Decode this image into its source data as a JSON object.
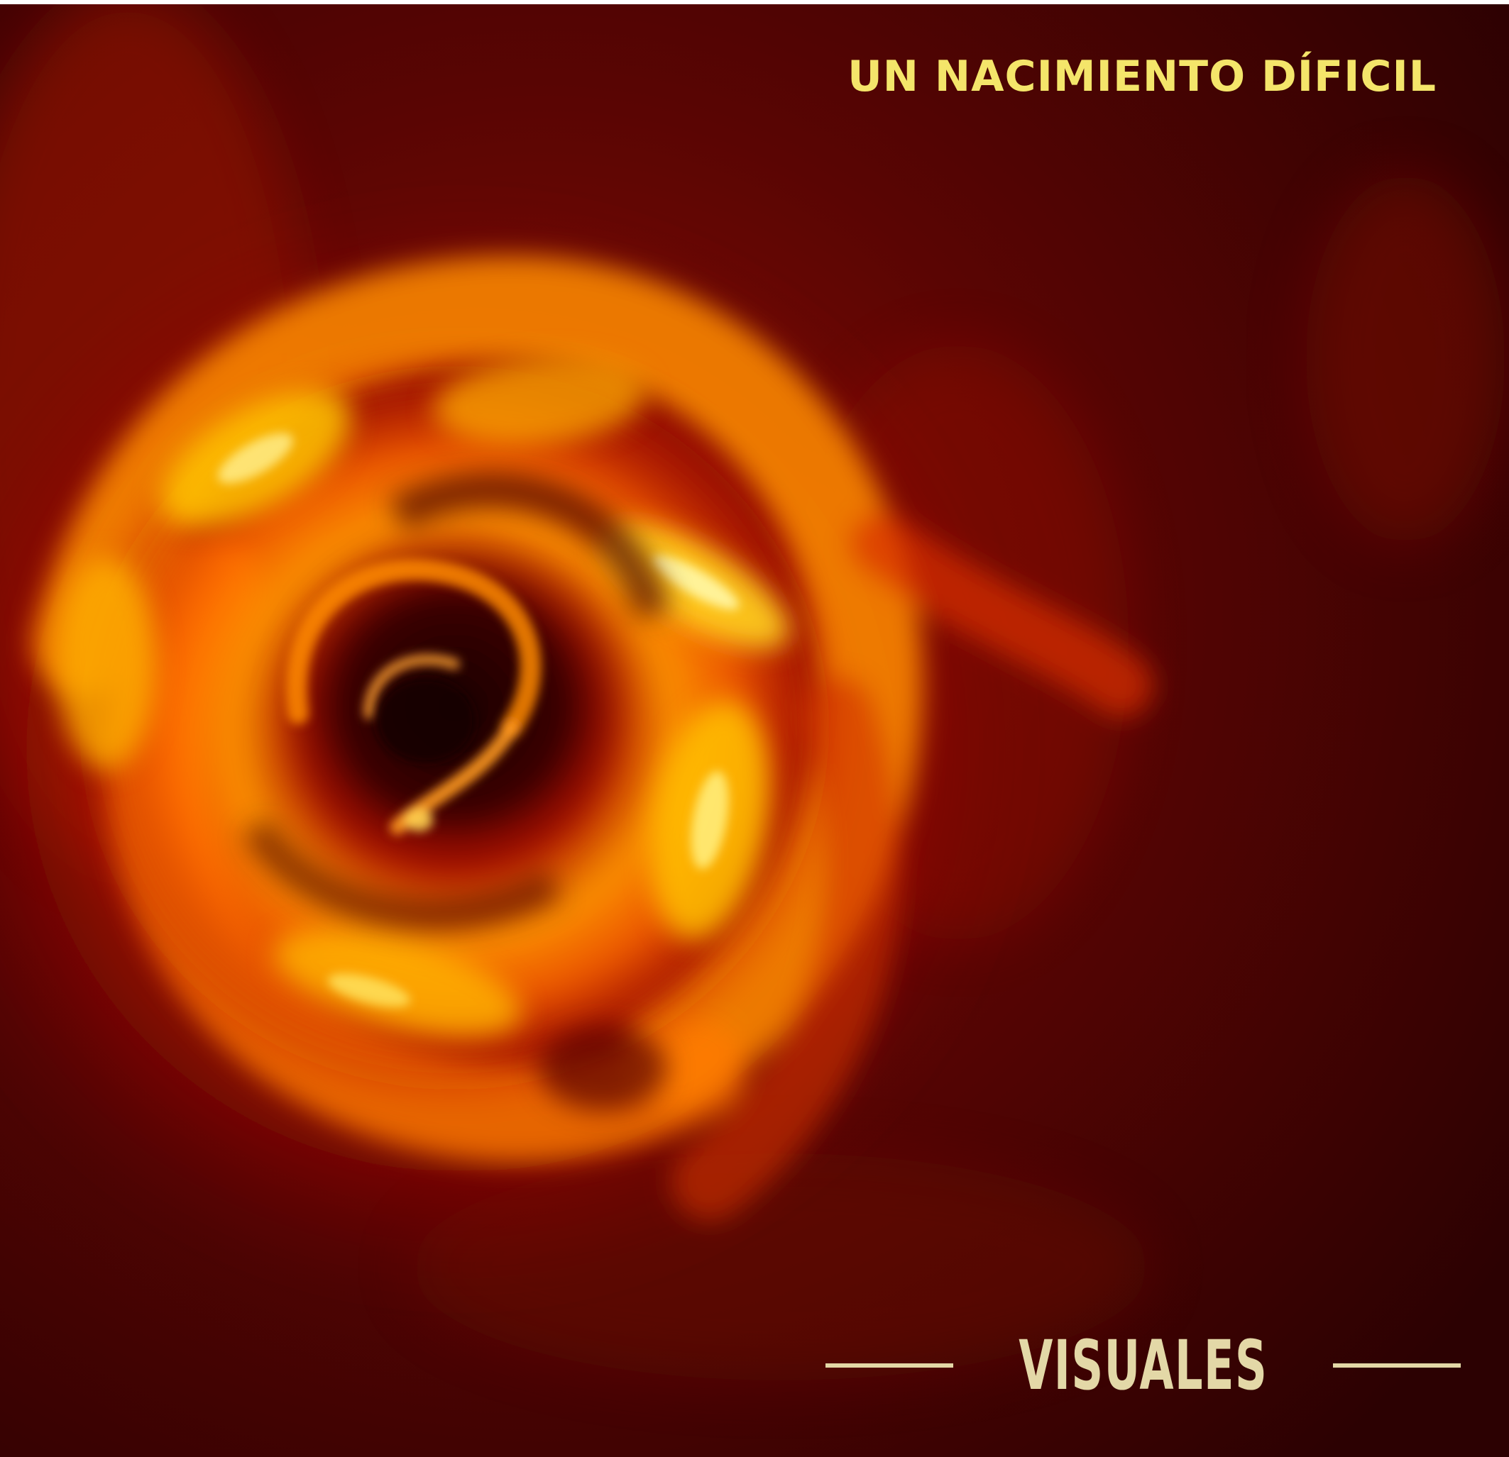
{
  "image": {
    "subject": "protoplanetary-disk",
    "colors": {
      "background": "#3a0203",
      "mid": "#b81800",
      "glow": "#ff9a00",
      "highlight": "#fff070"
    }
  },
  "title": {
    "text": "UN NACIMIENTO DÍFICIL",
    "color": "#f4e56a"
  },
  "brand": {
    "label": "VISUALES",
    "color": "#e3d8a7"
  }
}
